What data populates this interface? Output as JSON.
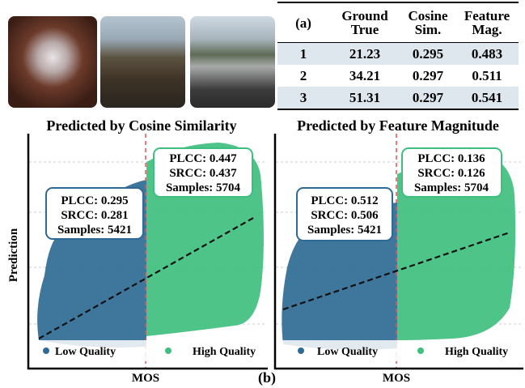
{
  "table": {
    "label": "(a)",
    "header": [
      "Ground True",
      "Cosine Sim.",
      "Feature Mag."
    ],
    "rows": [
      [
        1,
        21.23,
        0.295,
        0.483
      ],
      [
        2,
        34.21,
        0.297,
        0.511
      ],
      [
        3,
        51.31,
        0.297,
        0.541
      ]
    ]
  },
  "panels": [
    {
      "title": "Predicted by Cosine Similarity",
      "y_label": "Prediction",
      "x_label": "MOS",
      "boxes": [
        [
          "PLCC: 0.295",
          "SRCC: 0.281",
          "Samples: 5421"
        ],
        [
          "PLCC: 0.447",
          "SRCC: 0.437",
          "Samples: 5704"
        ]
      ],
      "legend": [
        "Low Quality",
        "High Quality"
      ]
    },
    {
      "title": "Predicted by Feature Magnitude",
      "x_label": "MOS",
      "boxes": [
        [
          "PLCC: 0.512",
          "SRCC: 0.506",
          "Samples: 5421"
        ],
        [
          "PLCC: 0.136",
          "SRCC: 0.126",
          "Samples: 5704"
        ]
      ],
      "legend": [
        "Low Quality",
        "High Quality"
      ]
    }
  ],
  "caption_label": "(b)"
}
